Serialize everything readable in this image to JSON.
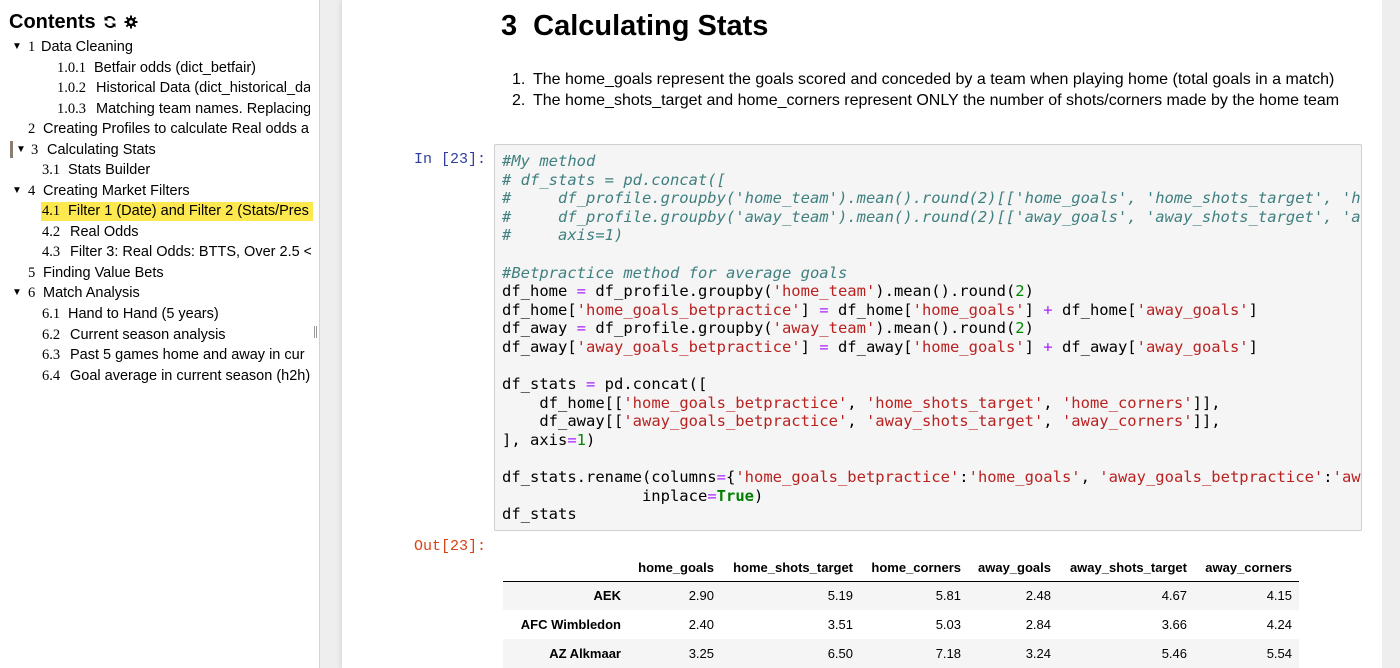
{
  "toc": {
    "title": "Contents",
    "items": [
      {
        "caret": "▼",
        "num": "1",
        "label": "Data Cleaning"
      },
      {
        "caret": "",
        "num": "1.0.1",
        "label": "Betfair odds (dict_betfair)"
      },
      {
        "caret": "",
        "num": "1.0.2",
        "label": "Historical Data (dict_historical_da"
      },
      {
        "caret": "",
        "num": "1.0.3",
        "label": "Matching team names. Replacing"
      },
      {
        "caret": "",
        "num": "2",
        "label": "Creating Profiles to calculate Real odds a"
      },
      {
        "caret": "▼",
        "num": "3",
        "label": "Calculating Stats"
      },
      {
        "caret": "",
        "num": "3.1",
        "label": "Stats Builder"
      },
      {
        "caret": "▼",
        "num": "4",
        "label": "Creating Market Filters"
      },
      {
        "caret": "",
        "num": "4.1",
        "label": "Filter 1 (Date) and Filter 2 (Stats/Pres"
      },
      {
        "caret": "",
        "num": "4.2",
        "label": "Real Odds"
      },
      {
        "caret": "",
        "num": "4.3",
        "label": "Filter 3: Real Odds: BTTS, Over 2.5 <"
      },
      {
        "caret": "",
        "num": "5",
        "label": "Finding Value Bets"
      },
      {
        "caret": "▼",
        "num": "6",
        "label": "Match Analysis"
      },
      {
        "caret": "",
        "num": "6.1",
        "label": "Hand to Hand (5 years)"
      },
      {
        "caret": "",
        "num": "6.2",
        "label": "Current season analysis"
      },
      {
        "caret": "",
        "num": "6.3",
        "label": "Past 5 games home and away in cur"
      },
      {
        "caret": "",
        "num": "6.4",
        "label": "Goal average in current season (h2h)"
      }
    ]
  },
  "heading": {
    "num": "3",
    "text": "Calculating Stats"
  },
  "list": [
    {
      "n": "1.",
      "text": "The home_goals represent the goals scored and conceded by a team when playing home (total goals in a match)"
    },
    {
      "n": "2.",
      "text": "The home_shots_target and home_corners represent ONLY the number of shots/corners made by the home team"
    }
  ],
  "in_prompt": "In [23]:",
  "out_prompt": "Out[23]:",
  "code_lines": [
    [
      [
        "cm",
        "#My method"
      ]
    ],
    [
      [
        "cm",
        "# df_stats = pd.concat(["
      ]
    ],
    [
      [
        "cm",
        "#     df_profile.groupby('home_team').mean().round(2)[['home_goals', 'home_shots_target', 'home_corners']],"
      ]
    ],
    [
      [
        "cm",
        "#     df_profile.groupby('away_team').mean().round(2)[['away_goals', 'away_shots_target', 'away_corners']],"
      ]
    ],
    [
      [
        "cm",
        "#     axis=1)"
      ]
    ],
    [
      [
        "",
        ""
      ]
    ],
    [
      [
        "cm",
        "#Betpractice method for average goals"
      ]
    ],
    [
      [
        "",
        "df_home "
      ],
      [
        "op",
        "="
      ],
      [
        "",
        " df_profile.groupby("
      ],
      [
        "st",
        "'home_team'"
      ],
      [
        "",
        ").mean().round("
      ],
      [
        "nu",
        "2"
      ],
      [
        "",
        ")"
      ]
    ],
    [
      [
        "",
        "df_home["
      ],
      [
        "st",
        "'home_goals_betpractice'"
      ],
      [
        "",
        "] "
      ],
      [
        "op",
        "="
      ],
      [
        "",
        " df_home["
      ],
      [
        "st",
        "'home_goals'"
      ],
      [
        "",
        "] "
      ],
      [
        "op",
        "+"
      ],
      [
        "",
        " df_home["
      ],
      [
        "st",
        "'away_goals'"
      ],
      [
        "",
        "]"
      ]
    ],
    [
      [
        "",
        "df_away "
      ],
      [
        "op",
        "="
      ],
      [
        "",
        " df_profile.groupby("
      ],
      [
        "st",
        "'away_team'"
      ],
      [
        "",
        ").mean().round("
      ],
      [
        "nu",
        "2"
      ],
      [
        "",
        ")"
      ]
    ],
    [
      [
        "",
        "df_away["
      ],
      [
        "st",
        "'away_goals_betpractice'"
      ],
      [
        "",
        "] "
      ],
      [
        "op",
        "="
      ],
      [
        "",
        " df_away["
      ],
      [
        "st",
        "'home_goals'"
      ],
      [
        "",
        "] "
      ],
      [
        "op",
        "+"
      ],
      [
        "",
        " df_away["
      ],
      [
        "st",
        "'away_goals'"
      ],
      [
        "",
        "]"
      ]
    ],
    [
      [
        "",
        ""
      ]
    ],
    [
      [
        "",
        "df_stats "
      ],
      [
        "op",
        "="
      ],
      [
        "",
        " pd.concat(["
      ]
    ],
    [
      [
        "",
        "    df_home[["
      ],
      [
        "st",
        "'home_goals_betpractice'"
      ],
      [
        "",
        ", "
      ],
      [
        "st",
        "'home_shots_target'"
      ],
      [
        "",
        ", "
      ],
      [
        "st",
        "'home_corners'"
      ],
      [
        "",
        "]],"
      ]
    ],
    [
      [
        "",
        "    df_away[["
      ],
      [
        "st",
        "'away_goals_betpractice'"
      ],
      [
        "",
        ", "
      ],
      [
        "st",
        "'away_shots_target'"
      ],
      [
        "",
        ", "
      ],
      [
        "st",
        "'away_corners'"
      ],
      [
        "",
        "]],"
      ]
    ],
    [
      [
        "",
        "], axis"
      ],
      [
        "op",
        "="
      ],
      [
        "nu",
        "1"
      ],
      [
        "",
        ")"
      ]
    ],
    [
      [
        "",
        ""
      ]
    ],
    [
      [
        "",
        "df_stats.rename(columns"
      ],
      [
        "op",
        "="
      ],
      [
        "",
        "{"
      ],
      [
        "st",
        "'home_goals_betpractice'"
      ],
      [
        "",
        ":"
      ],
      [
        "st",
        "'home_goals'"
      ],
      [
        "",
        ", "
      ],
      [
        "st",
        "'away_goals_betpractice'"
      ],
      [
        "",
        ":"
      ],
      [
        "st",
        "'away_goals'"
      ],
      [
        "",
        "},"
      ]
    ],
    [
      [
        "",
        "               inplace"
      ],
      [
        "op",
        "="
      ],
      [
        "kw",
        "True"
      ],
      [
        "",
        ")"
      ]
    ],
    [
      [
        "",
        "df_stats"
      ]
    ]
  ],
  "table": {
    "columns": [
      "",
      "home_goals",
      "home_shots_target",
      "home_corners",
      "away_goals",
      "away_shots_target",
      "away_corners"
    ],
    "rows": [
      {
        "index": "AEK",
        "values": [
          "2.90",
          "5.19",
          "5.81",
          "2.48",
          "4.67",
          "4.15"
        ]
      },
      {
        "index": "AFC Wimbledon",
        "values": [
          "2.40",
          "3.51",
          "5.03",
          "2.84",
          "3.66",
          "4.24"
        ]
      },
      {
        "index": "AZ Alkmaar",
        "values": [
          "3.25",
          "6.50",
          "7.18",
          "3.24",
          "5.46",
          "5.54"
        ]
      }
    ]
  }
}
